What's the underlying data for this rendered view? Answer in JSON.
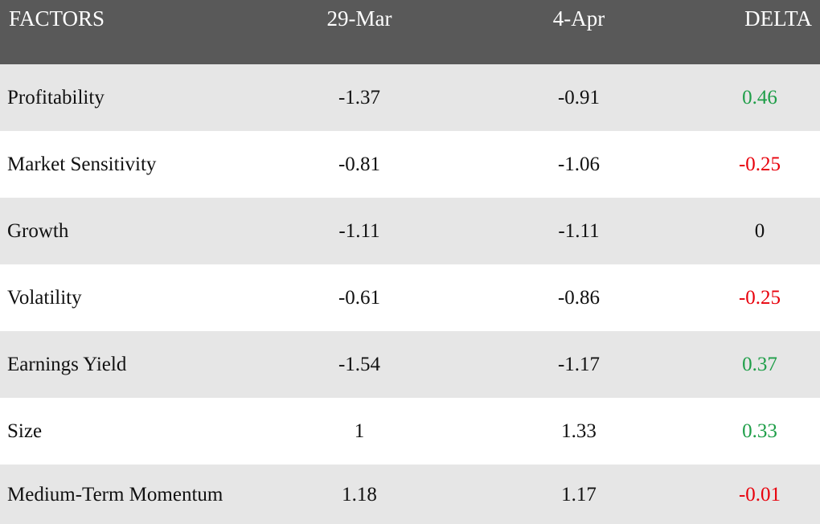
{
  "colors": {
    "header_bg": "#595959",
    "row_shade": "#e6e6e6",
    "positive": "#1e9e48",
    "negative": "#e8000b"
  },
  "header": {
    "factors": "FACTORS",
    "date1": "29-Mar",
    "date2": "4-Apr",
    "delta": "DELTA"
  },
  "rows": [
    {
      "factor": "Profitability",
      "v1": "-1.37",
      "v2": "-0.91",
      "delta": "0.46",
      "sign": "pos"
    },
    {
      "factor": "Market Sensitivity",
      "v1": "-0.81",
      "v2": "-1.06",
      "delta": "-0.25",
      "sign": "neg"
    },
    {
      "factor": "Growth",
      "v1": "-1.11",
      "v2": "-1.11",
      "delta": "0",
      "sign": "zero"
    },
    {
      "factor": "Volatility",
      "v1": "-0.61",
      "v2": "-0.86",
      "delta": "-0.25",
      "sign": "neg"
    },
    {
      "factor": "Earnings Yield",
      "v1": "-1.54",
      "v2": "-1.17",
      "delta": "0.37",
      "sign": "pos"
    },
    {
      "factor": "Size",
      "v1": "1",
      "v2": "1.33",
      "delta": "0.33",
      "sign": "pos"
    },
    {
      "factor": "Medium-Term Momentum",
      "v1": "1.18",
      "v2": "1.17",
      "delta": "-0.01",
      "sign": "neg"
    }
  ]
}
